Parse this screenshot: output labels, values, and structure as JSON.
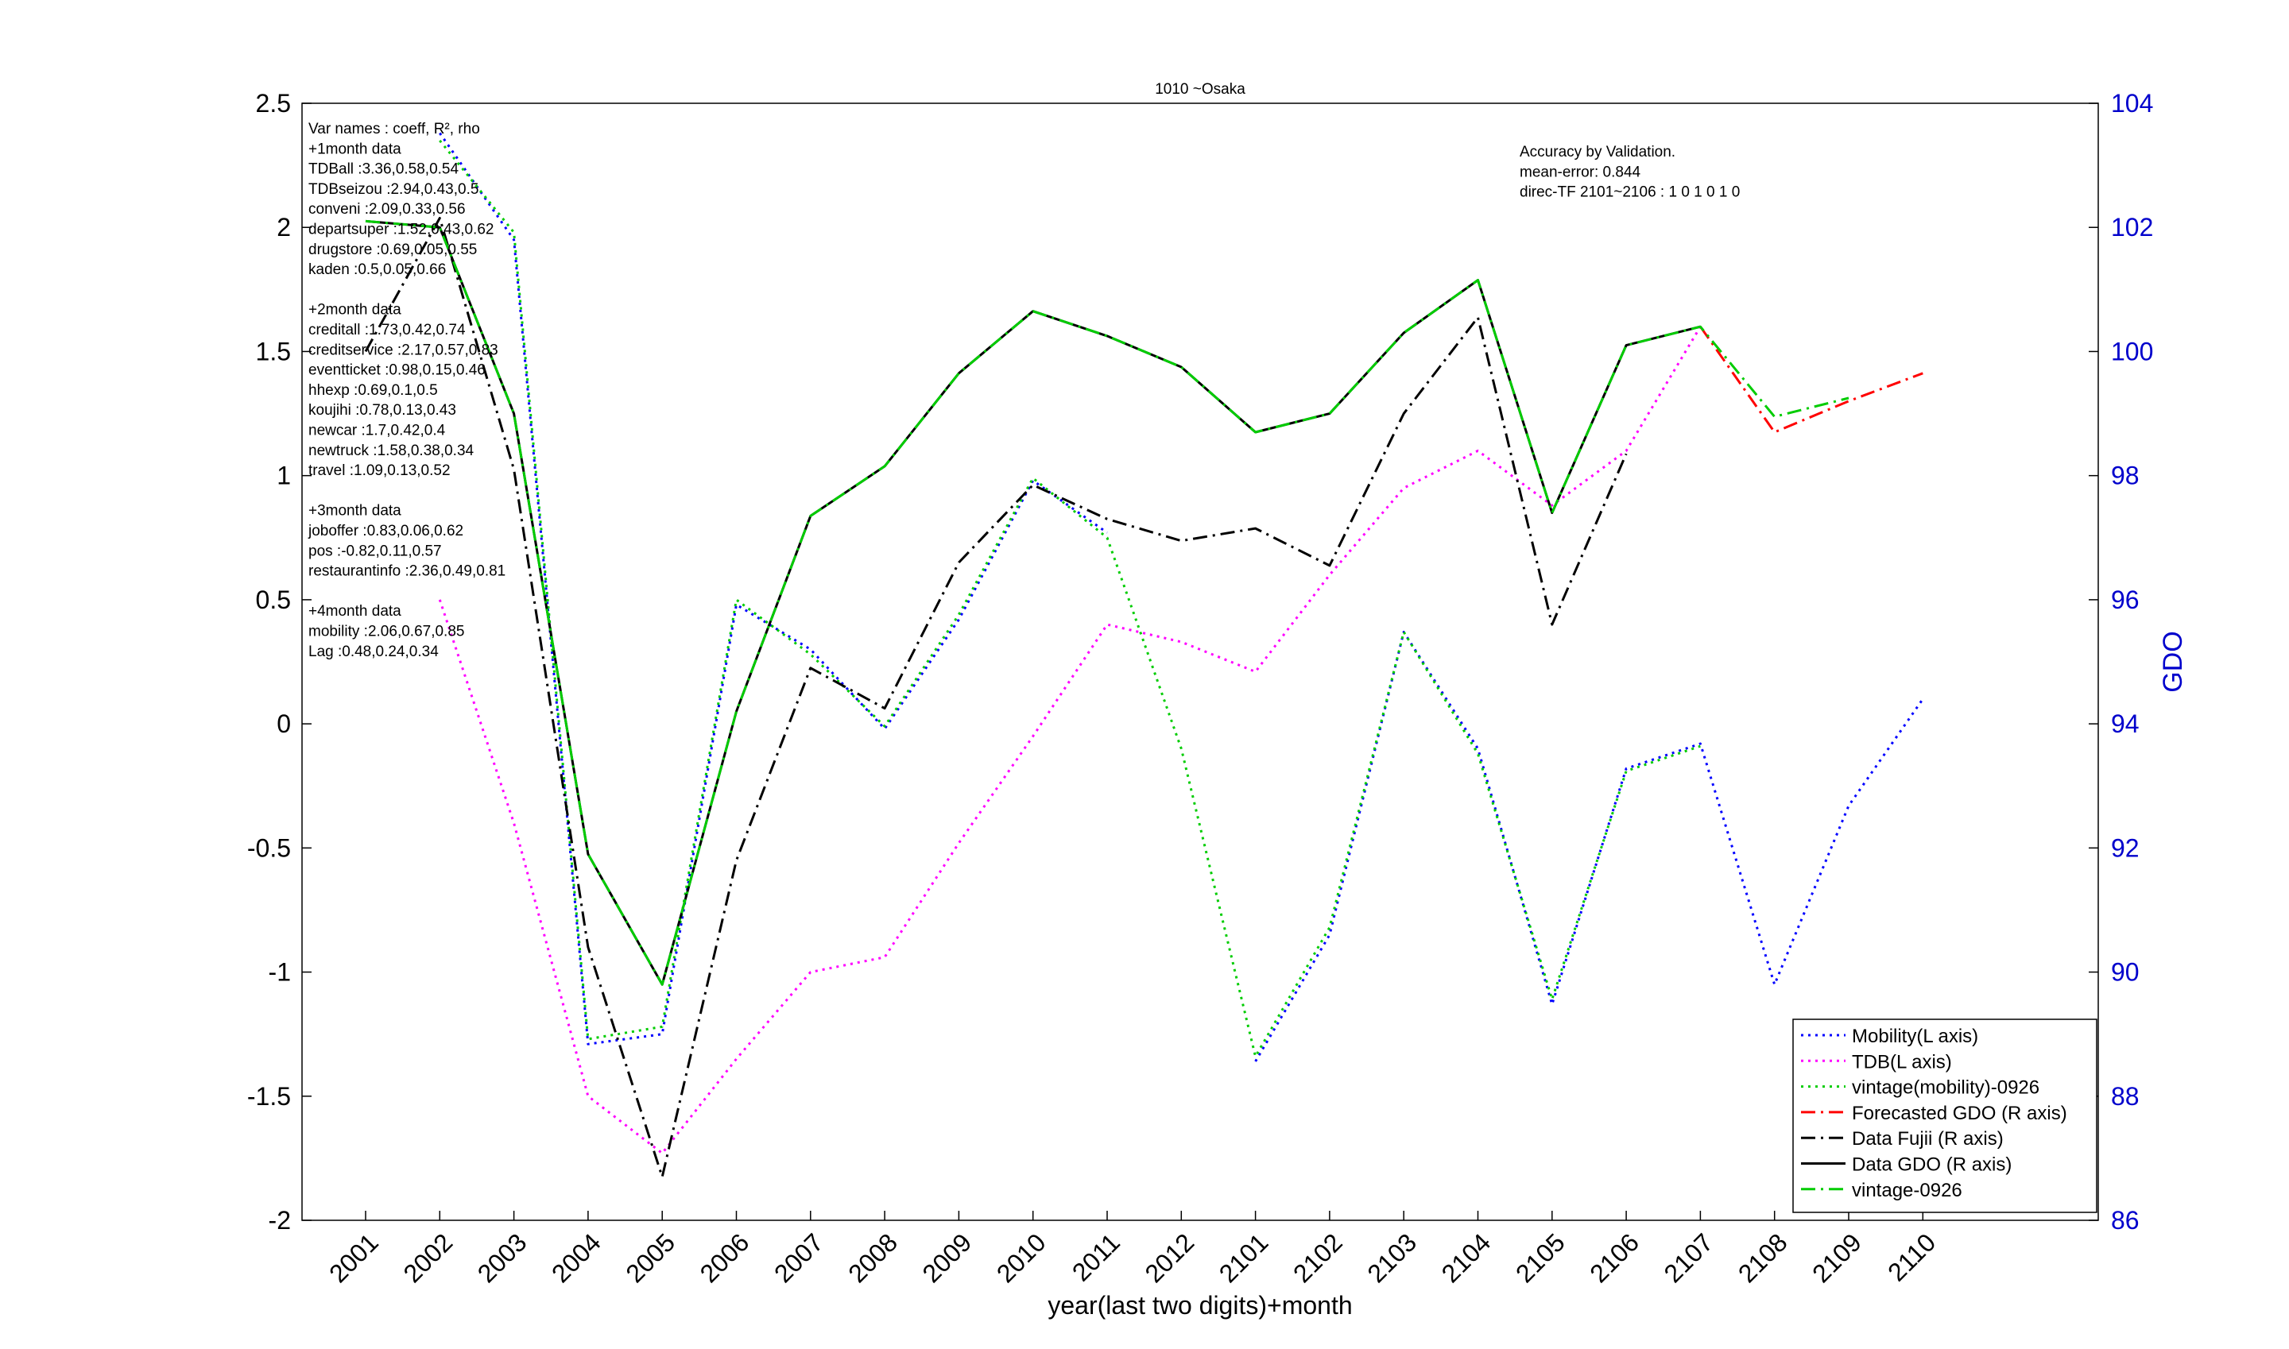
{
  "chart_data": {
    "type": "line",
    "title": "1010 ~Osaka",
    "xlabel": "year(last two digits)+month",
    "ylabel": "",
    "y2label": "GDO",
    "categories": [
      "2001",
      "2002",
      "2003",
      "2004",
      "2005",
      "2006",
      "2007",
      "2008",
      "2009",
      "2010",
      "2011",
      "2012",
      "2101",
      "2102",
      "2103",
      "2104",
      "2105",
      "2106",
      "2107",
      "2108",
      "2109",
      "2110"
    ],
    "ylim": [
      -2,
      2.5
    ],
    "yticks": [
      "-2",
      "-1.5",
      "-1",
      "-0.5",
      "0",
      "0.5",
      "1",
      "1.5",
      "2",
      "2.5"
    ],
    "y2lim": [
      86,
      104
    ],
    "y2ticks": [
      "86",
      "88",
      "90",
      "92",
      "94",
      "96",
      "98",
      "100",
      "102",
      "104"
    ],
    "series": [
      {
        "name": "Mobility(L axis)",
        "axis": "left",
        "color": "#0000ff",
        "style": "dotted",
        "values": [
          null,
          2.38,
          1.95,
          -1.29,
          -1.25,
          0.48,
          0.3,
          -0.02,
          0.42,
          0.98,
          0.77,
          null,
          -1.36,
          -0.85,
          0.37,
          -0.1,
          -1.13,
          -0.18,
          -0.08,
          -1.05,
          -0.33,
          0.1
        ]
      },
      {
        "name": "TDB(L axis)",
        "axis": "left",
        "color": "#ff00ff",
        "style": "dotted",
        "values": [
          null,
          0.5,
          -0.4,
          -1.5,
          -1.73,
          -1.35,
          -1.0,
          -0.94,
          -0.48,
          -0.05,
          0.4,
          0.33,
          0.21,
          0.6,
          0.95,
          1.1,
          0.88,
          1.1,
          1.6,
          null,
          null,
          null
        ]
      },
      {
        "name": "vintage(mobility)-0926",
        "axis": "left",
        "color": "#00cc00",
        "style": "dotted",
        "values": [
          null,
          2.35,
          1.98,
          -1.27,
          -1.22,
          0.5,
          0.28,
          -0.01,
          0.44,
          0.99,
          0.75,
          -0.1,
          -1.34,
          -0.82,
          0.37,
          -0.12,
          -1.11,
          -0.19,
          -0.09,
          null,
          null,
          null
        ]
      },
      {
        "name": "Forecasted GDO (R axis)",
        "axis": "right",
        "color": "#ff0000",
        "style": "dashdot",
        "values": [
          null,
          null,
          null,
          null,
          null,
          null,
          null,
          null,
          null,
          null,
          null,
          null,
          null,
          null,
          null,
          null,
          null,
          null,
          100.4,
          98.7,
          99.2,
          99.65
        ]
      },
      {
        "name": "Data Fujii (R axis)",
        "axis": "right",
        "color": "#000000",
        "style": "dashdot",
        "values": [
          100.0,
          102.15,
          98.1,
          90.4,
          86.7,
          91.8,
          94.9,
          94.25,
          96.6,
          97.85,
          97.3,
          96.95,
          97.15,
          96.55,
          99.0,
          100.55,
          95.6,
          98.35,
          null,
          null,
          null,
          null
        ]
      },
      {
        "name": "Data GDO (R axis)",
        "axis": "right",
        "color": "#000000",
        "style": "solid",
        "values": [
          102.1,
          102.0,
          99.0,
          91.9,
          89.8,
          94.2,
          97.35,
          98.15,
          99.65,
          100.65,
          100.25,
          99.75,
          98.7,
          99.0,
          100.3,
          101.15,
          97.4,
          100.1,
          100.4,
          null,
          null,
          null
        ]
      },
      {
        "name": "vintage-0926",
        "axis": "right",
        "color": "#00cc00",
        "style": "dashdot",
        "values": [
          102.1,
          102.0,
          99.0,
          91.9,
          89.8,
          94.2,
          97.35,
          98.15,
          99.65,
          100.65,
          100.25,
          99.75,
          98.7,
          99.0,
          100.3,
          101.15,
          97.4,
          100.1,
          100.4,
          98.95,
          99.25,
          null
        ]
      }
    ],
    "legend_placement": "bottom-right",
    "grid": false,
    "left_annotation": [
      "Var names : coeff, R², rho",
      "+1month data",
      "TDBall :3.36,0.58,0.54",
      "TDBseizou :2.94,0.43,0.5",
      "conveni :2.09,0.33,0.56",
      "departsuper :1.52,0.43,0.62",
      "drugstore :0.69,0.05,0.55",
      "kaden :0.5,0.05,0.66",
      "",
      "+2month data",
      "creditall :1.73,0.42,0.74",
      "creditservice :2.17,0.57,0.83",
      "eventticket :0.98,0.15,0.46",
      "hhexp :0.69,0.1,0.5",
      "koujihi :0.78,0.13,0.43",
      "newcar :1.7,0.42,0.4",
      "newtruck :1.58,0.38,0.34",
      "travel :1.09,0.13,0.52",
      "",
      "+3month data",
      "joboffer :0.83,0.06,0.62",
      "pos :-0.82,0.11,0.57",
      "restaurantinfo :2.36,0.49,0.81",
      "",
      "+4month data",
      "mobility :2.06,0.67,0.85",
      "Lag :0.48,0.24,0.34"
    ],
    "right_annotation": [
      "Accuracy by Validation.",
      "mean-error: 0.844",
      "direc-TF 2101~2106 : 1  0  1  0  1  0"
    ]
  }
}
